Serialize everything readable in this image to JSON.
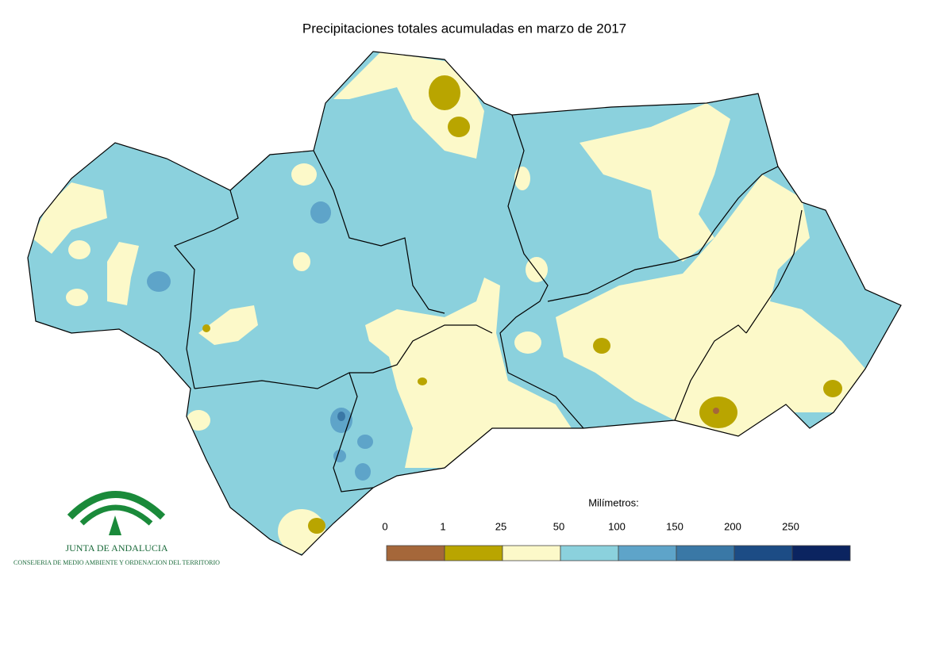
{
  "title": "Precipitaciones totales acumuladas en marzo de 2017",
  "legend": {
    "label": "Milímetros:",
    "ticks": [
      0,
      1,
      25,
      50,
      100,
      150,
      200,
      250
    ],
    "colors": [
      "#a5673a",
      "#b9a500",
      "#fcf9c9",
      "#8bd1dd",
      "#5ea4c9",
      "#3a78a6",
      "#1c4c85",
      "#0b2460"
    ]
  },
  "logo": {
    "name": "JUNTA DE ANDALUCIA",
    "subtitle": "CONSEJERIA DE MEDIO AMBIENTE Y ORDENACION DEL TERRITORIO"
  }
}
